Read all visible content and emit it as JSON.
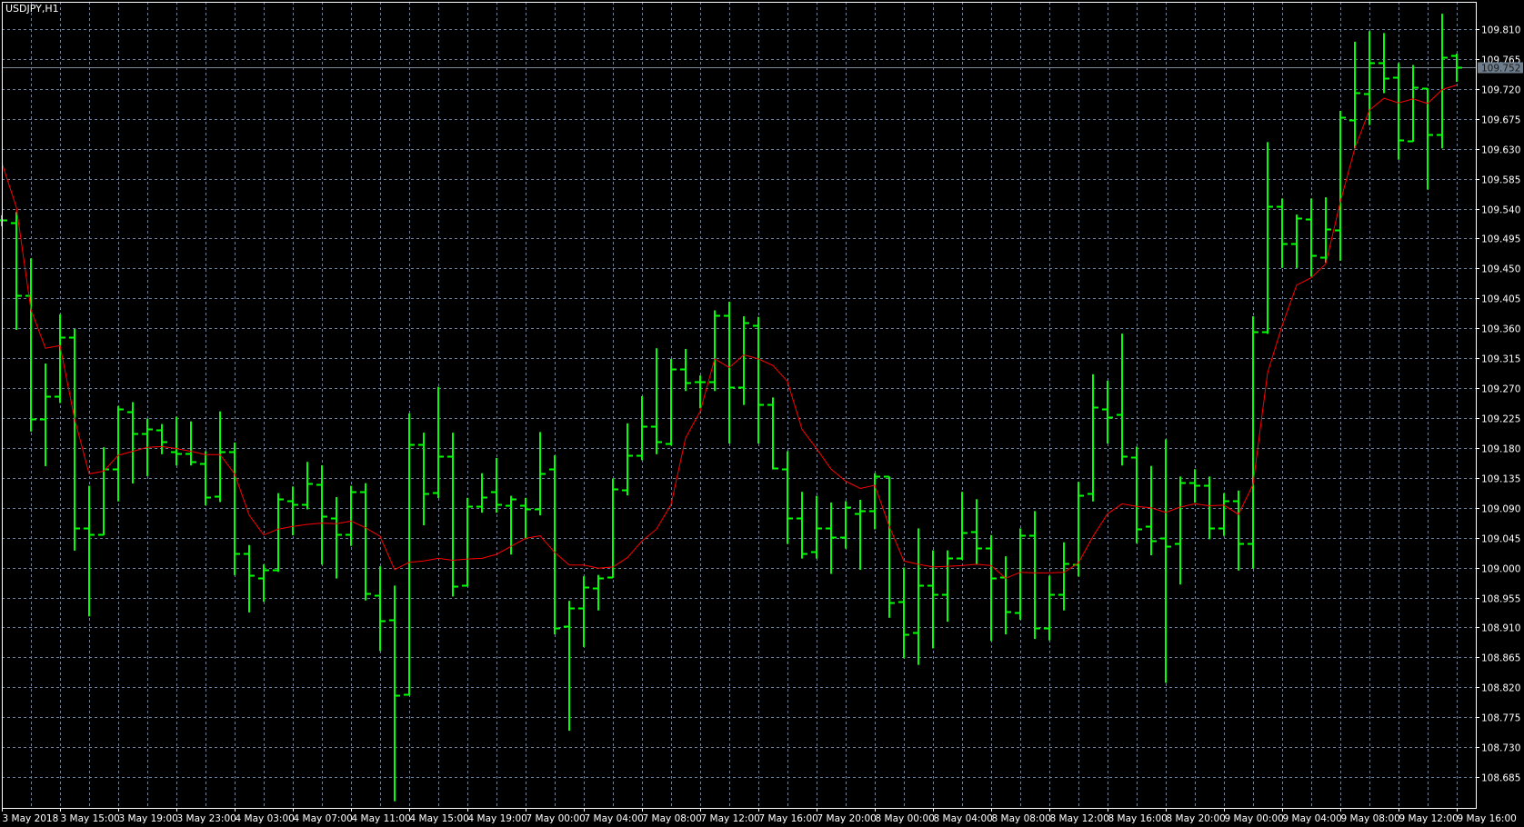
{
  "chart_data": {
    "type": "ohlc",
    "title": "USDJPY,H1",
    "symbol": "USDJPY",
    "timeframe": "H1",
    "ylim": [
      108.64,
      109.855
    ],
    "grid": true,
    "colors": {
      "background": "#000000",
      "bars": "#00ff00",
      "moving_average": "#ff0000",
      "grid": "#6f7f95",
      "frame": "#ffffff",
      "price_line": "#7a8896",
      "price_label_bg": "#6e7d8c"
    },
    "current_price": "109.752",
    "y_tick_labels": [
      "109.810",
      "109.765",
      "109.720",
      "109.675",
      "109.630",
      "109.585",
      "109.540",
      "109.495",
      "109.450",
      "109.405",
      "109.360",
      "109.315",
      "109.270",
      "109.225",
      "109.180",
      "109.135",
      "109.090",
      "109.045",
      "109.000",
      "108.955",
      "108.910",
      "108.865",
      "108.820",
      "108.775",
      "108.730",
      "108.685"
    ],
    "x_tick_labels": [
      "3 May 2018",
      "3 May 15:00",
      "3 May 19:00",
      "3 May 23:00",
      "4 May 03:00",
      "4 May 07:00",
      "4 May 11:00",
      "4 May 15:00",
      "4 May 19:00",
      "7 May 00:00",
      "7 May 04:00",
      "7 May 08:00",
      "7 May 12:00",
      "7 May 16:00",
      "7 May 20:00",
      "8 May 00:00",
      "8 May 04:00",
      "8 May 08:00",
      "8 May 12:00",
      "8 May 16:00",
      "8 May 20:00",
      "9 May 00:00",
      "9 May 04:00",
      "9 May 08:00",
      "9 May 12:00",
      "9 May 16:00"
    ],
    "x_tick_every_bars": 4,
    "ohlc_fields": [
      "open",
      "high",
      "low",
      "close"
    ],
    "bars": [
      [
        109.523,
        109.53,
        109.515,
        109.523
      ],
      [
        109.519,
        109.535,
        109.359,
        109.41
      ],
      [
        109.41,
        109.465,
        109.206,
        109.224
      ],
      [
        109.224,
        109.307,
        109.154,
        109.258
      ],
      [
        109.258,
        109.381,
        109.249,
        109.346
      ],
      [
        109.346,
        109.359,
        109.027,
        109.059
      ],
      [
        109.059,
        109.123,
        108.928,
        109.05
      ],
      [
        109.05,
        109.181,
        109.05,
        109.148
      ],
      [
        109.148,
        109.243,
        109.101,
        109.238
      ],
      [
        109.235,
        109.249,
        109.128,
        109.202
      ],
      [
        109.202,
        109.224,
        109.139,
        109.209
      ],
      [
        109.207,
        109.216,
        109.172,
        109.19
      ],
      [
        109.174,
        109.227,
        109.155,
        109.171
      ],
      [
        109.172,
        109.22,
        109.155,
        109.159
      ],
      [
        109.157,
        109.175,
        109.095,
        109.106
      ],
      [
        109.107,
        109.235,
        109.1,
        109.174
      ],
      [
        109.174,
        109.188,
        108.99,
        109.022
      ],
      [
        109.022,
        109.034,
        108.934,
        108.988
      ],
      [
        108.985,
        109.005,
        108.95,
        108.997
      ],
      [
        108.997,
        109.112,
        108.995,
        109.103
      ],
      [
        109.101,
        109.122,
        109.05,
        109.095
      ],
      [
        109.095,
        109.159,
        109.089,
        109.126
      ],
      [
        109.125,
        109.154,
        109.006,
        109.077
      ],
      [
        109.075,
        109.106,
        108.985,
        109.05
      ],
      [
        109.05,
        109.123,
        109.034,
        109.114
      ],
      [
        109.114,
        109.127,
        108.952,
        108.961
      ],
      [
        108.958,
        109.002,
        108.876,
        108.92
      ],
      [
        108.921,
        108.973,
        108.65,
        108.808
      ],
      [
        108.81,
        109.232,
        108.809,
        109.186
      ],
      [
        109.185,
        109.203,
        109.065,
        109.112
      ],
      [
        109.113,
        109.272,
        109.106,
        109.168
      ],
      [
        109.168,
        109.203,
        108.958,
        108.972
      ],
      [
        108.973,
        109.105,
        108.973,
        109.093
      ],
      [
        109.093,
        109.142,
        109.084,
        109.106
      ],
      [
        109.114,
        109.165,
        109.084,
        109.095
      ],
      [
        109.094,
        109.108,
        109.021,
        109.103
      ],
      [
        109.094,
        109.105,
        109.044,
        109.088
      ],
      [
        109.088,
        109.204,
        109.08,
        109.141
      ],
      [
        109.148,
        109.169,
        108.901,
        108.909
      ],
      [
        108.912,
        108.95,
        108.756,
        108.939
      ],
      [
        108.939,
        108.987,
        108.882,
        108.971
      ],
      [
        108.97,
        108.989,
        108.937,
        108.984
      ],
      [
        108.986,
        109.134,
        108.986,
        109.119
      ],
      [
        109.117,
        109.217,
        109.11,
        109.169
      ],
      [
        109.169,
        109.258,
        109.163,
        109.213
      ],
      [
        109.213,
        109.33,
        109.172,
        109.189
      ],
      [
        109.187,
        109.314,
        109.185,
        109.299
      ],
      [
        109.299,
        109.329,
        109.267,
        109.278
      ],
      [
        109.28,
        109.289,
        109.241,
        109.28
      ],
      [
        109.28,
        109.387,
        109.267,
        109.379
      ],
      [
        109.38,
        109.4,
        109.188,
        109.271
      ],
      [
        109.271,
        109.378,
        109.246,
        109.369
      ],
      [
        109.365,
        109.377,
        109.188,
        109.246
      ],
      [
        109.246,
        109.256,
        109.149,
        109.15
      ],
      [
        109.148,
        109.175,
        109.037,
        109.074
      ],
      [
        109.074,
        109.114,
        109.015,
        109.022
      ],
      [
        109.024,
        109.108,
        109.015,
        109.059
      ],
      [
        109.059,
        109.098,
        108.992,
        109.046
      ],
      [
        109.046,
        109.1,
        109.03,
        109.091
      ],
      [
        109.082,
        109.102,
        108.998,
        109.085
      ],
      [
        109.085,
        109.142,
        109.059,
        109.137
      ],
      [
        109.137,
        109.137,
        108.926,
        108.947
      ],
      [
        108.949,
        109.0,
        108.865,
        108.9
      ],
      [
        108.902,
        109.059,
        108.855,
        108.973
      ],
      [
        108.974,
        109.026,
        108.88,
        108.96
      ],
      [
        108.96,
        109.026,
        108.92,
        109.014
      ],
      [
        109.015,
        109.114,
        109.013,
        109.053
      ],
      [
        109.054,
        109.103,
        109.006,
        109.03
      ],
      [
        109.03,
        109.049,
        108.891,
        108.985
      ],
      [
        108.986,
        109.017,
        108.901,
        108.934
      ],
      [
        108.933,
        109.059,
        108.923,
        109.048
      ],
      [
        109.048,
        109.085,
        108.894,
        108.909
      ],
      [
        108.909,
        108.988,
        108.892,
        108.96
      ],
      [
        108.96,
        109.038,
        108.937,
        109.006
      ],
      [
        109.005,
        109.129,
        108.988,
        109.109
      ],
      [
        109.111,
        109.291,
        109.101,
        109.241
      ],
      [
        109.239,
        109.281,
        109.188,
        109.227
      ],
      [
        109.231,
        109.352,
        109.155,
        109.167
      ],
      [
        109.166,
        109.182,
        109.038,
        109.058
      ],
      [
        109.062,
        109.153,
        109.02,
        109.04
      ],
      [
        109.045,
        109.193,
        108.828,
        109.032
      ],
      [
        109.037,
        109.137,
        108.976,
        109.128
      ],
      [
        109.128,
        109.148,
        109.099,
        109.124
      ],
      [
        109.124,
        109.137,
        109.044,
        109.06
      ],
      [
        109.06,
        109.112,
        109.049,
        109.101
      ],
      [
        109.101,
        109.116,
        108.997,
        109.037
      ],
      [
        109.037,
        109.378,
        109.0,
        109.355
      ],
      [
        109.355,
        109.64,
        109.353,
        109.544
      ],
      [
        109.544,
        109.555,
        109.452,
        109.488
      ],
      [
        109.487,
        109.531,
        109.452,
        109.526
      ],
      [
        109.525,
        109.555,
        109.439,
        109.469
      ],
      [
        109.467,
        109.557,
        109.46,
        109.509
      ],
      [
        109.508,
        109.687,
        109.463,
        109.677
      ],
      [
        109.673,
        109.791,
        109.632,
        109.714
      ],
      [
        109.713,
        109.807,
        109.667,
        109.759
      ],
      [
        109.759,
        109.804,
        109.715,
        109.736
      ],
      [
        109.737,
        109.759,
        109.615,
        109.643
      ],
      [
        109.642,
        109.756,
        109.642,
        109.723
      ],
      [
        109.721,
        109.721,
        109.57,
        109.652
      ],
      [
        109.651,
        109.833,
        109.632,
        109.768
      ],
      [
        109.771,
        109.773,
        109.732,
        109.752
      ]
    ],
    "moving_average": [
      109.609,
      109.542,
      109.388,
      109.33,
      109.334,
      109.224,
      109.141,
      109.145,
      109.169,
      109.175,
      109.181,
      109.182,
      109.179,
      109.175,
      109.17,
      109.17,
      109.141,
      109.079,
      109.049,
      109.058,
      109.062,
      109.065,
      109.067,
      109.066,
      109.07,
      109.06,
      109.047,
      108.997,
      109.008,
      109.01,
      109.014,
      109.011,
      109.013,
      109.014,
      109.02,
      109.032,
      109.044,
      109.048,
      109.023,
      109.004,
      109.004,
      108.999,
      109.001,
      109.015,
      109.04,
      109.058,
      109.095,
      109.195,
      109.235,
      109.314,
      109.301,
      109.32,
      109.314,
      109.304,
      109.28,
      109.208,
      109.179,
      109.148,
      109.13,
      109.119,
      109.124,
      109.062,
      109.01,
      109.005,
      109.001,
      109.002,
      109.003,
      109.005,
      109.003,
      108.984,
      108.993,
      108.992,
      108.992,
      108.993,
      109.007,
      109.047,
      109.081,
      109.096,
      109.092,
      109.09,
      109.083,
      109.091,
      109.096,
      109.093,
      109.094,
      109.08,
      109.125,
      109.293,
      109.364,
      109.425,
      109.436,
      109.457,
      109.55,
      109.631,
      109.688,
      109.706,
      109.699,
      109.705,
      109.698,
      109.719,
      109.726
    ]
  }
}
